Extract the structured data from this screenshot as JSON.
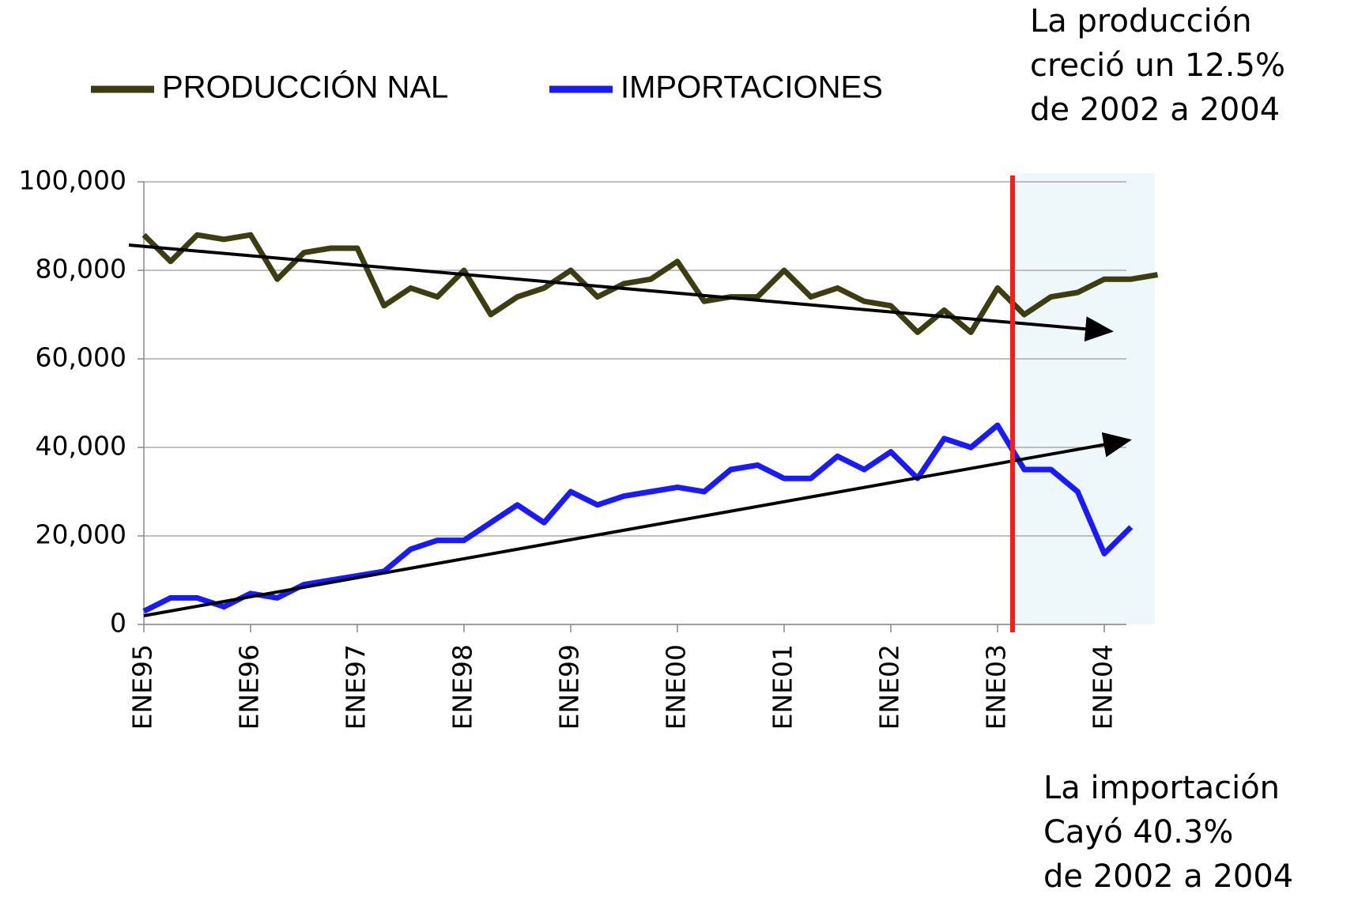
{
  "chart_data": {
    "type": "line",
    "categories": [
      "ENE95",
      null,
      null,
      null,
      "ENE96",
      null,
      null,
      null,
      "ENE97",
      null,
      null,
      null,
      "ENE98",
      null,
      null,
      null,
      "ENE99",
      null,
      null,
      null,
      "ENE00",
      null,
      null,
      null,
      "ENE01",
      null,
      null,
      null,
      "ENE02",
      null,
      null,
      null,
      "ENE03",
      null,
      null,
      null,
      "ENE04",
      null,
      null
    ],
    "series": [
      {
        "name": "PRODUCCIÓN NAL",
        "color": "#3d3d12",
        "values": [
          88000,
          82000,
          88000,
          87000,
          88000,
          78000,
          84000,
          85000,
          85000,
          72000,
          76000,
          74000,
          80000,
          70000,
          74000,
          76000,
          80000,
          74000,
          77000,
          78000,
          82000,
          73000,
          74000,
          74000,
          80000,
          74000,
          76000,
          73000,
          72000,
          66000,
          71000,
          66000,
          76000,
          70000,
          74000,
          75000,
          78000,
          78000,
          79000
        ]
      },
      {
        "name": "IMPORTACIONES",
        "color": "#1a1aff",
        "values": [
          3000,
          6000,
          6000,
          4000,
          7000,
          6000,
          9000,
          10000,
          11000,
          12000,
          17000,
          19000,
          19000,
          23000,
          27000,
          23000,
          30000,
          27000,
          29000,
          30000,
          31000,
          30000,
          35000,
          36000,
          33000,
          33000,
          38000,
          35000,
          39000,
          33000,
          42000,
          40000,
          45000,
          35000,
          35000,
          30000,
          16000,
          22000,
          null
        ]
      }
    ],
    "ylim": [
      0,
      100000
    ],
    "yticks": [
      0,
      {
        "value": 20000,
        "label": "20,000"
      },
      {
        "value": 40000,
        "label": "40,000"
      },
      {
        "value": 60000,
        "label": "60,000"
      },
      {
        "value": 80000,
        "label": "80,000"
      },
      {
        "value": 100000,
        "label": "100,000"
      }
    ],
    "grid": true,
    "annotations": [
      {
        "lines": [
          "La producción",
          "creció un 12.5%",
          "de 2002 a 2004"
        ]
      },
      {
        "lines": [
          "La importación",
          "Cayó 40.3%",
          "de 2002 a 2004"
        ]
      }
    ]
  }
}
